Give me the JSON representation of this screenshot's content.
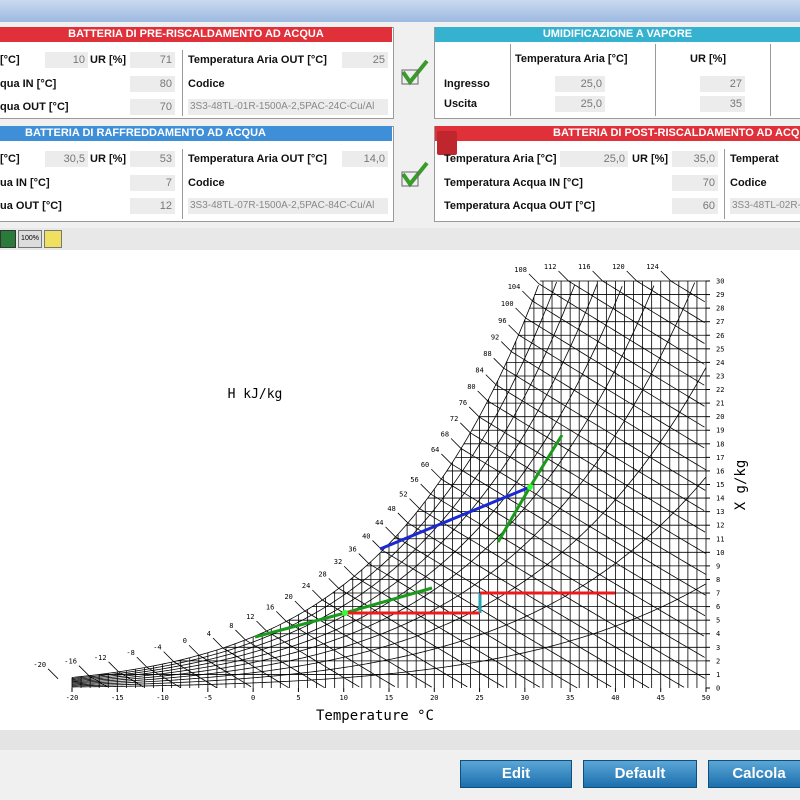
{
  "pre_heating": {
    "title": "BATTERIA DI PRE-RISCALDAMENTO AD ACQUA",
    "rows": [
      [
        "[°C]",
        10,
        "UR [%]",
        71,
        "Temperatura Aria OUT [°C]",
        25
      ],
      [
        "qua IN [°C]",
        80,
        "Codice"
      ],
      [
        "qua OUT [°C]",
        70,
        "3S3-48TL-01R-1500A-2,5PAC-24C-Cu/Al"
      ]
    ]
  },
  "cooling": {
    "title": "BATTERIA DI RAFFREDDAMENTO AD ACQUA",
    "rows": [
      [
        "[°C]",
        "30,5",
        "UR [%]",
        53,
        "Temperatura Aria OUT [°C]",
        "14,0"
      ],
      [
        "ua IN [°C]",
        7,
        "Codice"
      ],
      [
        "ua OUT [°C]",
        12,
        "3S3-48TL-07R-1500A-2,5PAC-84C-Cu/Al"
      ]
    ]
  },
  "humidification": {
    "title": "UMIDIFICAZIONE A VAPORE",
    "headers": [
      "Temperatura Aria [°C]",
      "UR [%]"
    ],
    "rows": [
      [
        "Ingresso",
        "25,0",
        27
      ],
      [
        "Uscita",
        "25,0",
        35
      ]
    ]
  },
  "post_heating": {
    "title": "BATTERIA DI POST-RISCALDAMENTO AD ACQ",
    "rows": [
      [
        "Temperatura Aria [°C]",
        "25,0",
        "UR [%]",
        "35,0",
        "Temperat"
      ],
      [
        "Temperatura Acqua IN [°C]",
        70,
        "Codice"
      ],
      [
        "Temperatura Acqua OUT [°C]",
        60,
        "3S3-48TL-02R-1"
      ]
    ]
  },
  "toolbar_label": "100%",
  "chart": {
    "h_label": "H kJ/kg",
    "x_label": "Temperature °C",
    "y_label": "X g/kg",
    "xticks": [
      -20,
      -15,
      -10,
      -5,
      0,
      5,
      10,
      15,
      20,
      25,
      30,
      35,
      40,
      45,
      50
    ],
    "yticks": [
      0,
      1,
      2,
      3,
      4,
      5,
      6,
      7,
      8,
      9,
      10,
      11,
      12,
      13,
      14,
      15,
      16,
      17,
      18,
      19,
      20,
      21,
      22,
      23,
      24,
      25,
      26,
      27,
      28,
      29,
      30
    ],
    "hticks": [
      -20,
      -16,
      -12,
      -8,
      -4,
      0,
      4,
      8,
      12,
      16,
      20,
      24,
      28,
      32,
      36,
      40,
      44,
      48,
      52,
      56,
      60,
      64,
      68,
      72,
      76,
      80,
      84,
      88,
      92,
      96,
      100,
      104,
      108,
      112,
      116,
      120,
      124
    ]
  },
  "buttons": [
    "Edit",
    "Default",
    "Calcola"
  ]
}
